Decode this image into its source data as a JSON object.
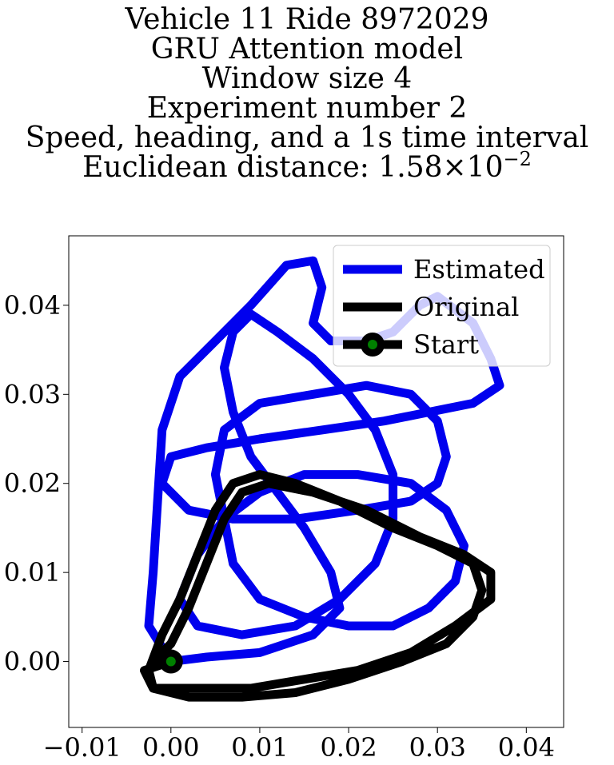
{
  "chart_data": {
    "type": "line",
    "title_lines": [
      "Vehicle 11 Ride 8972029",
      "GRU Attention model",
      "Window size 4",
      "Experiment number 2",
      "Speed, heading, and a 1s time interval"
    ],
    "title_metric": {
      "prefix": "Euclidean distance: ",
      "mantissa": "1.58",
      "times": "×",
      "base": "10",
      "exponent": "−2"
    },
    "xlim": [
      -0.0115,
      0.0442
    ],
    "ylim": [
      -0.0074,
      0.0478
    ],
    "x_ticks": [
      -0.01,
      0.0,
      0.01,
      0.02,
      0.03,
      0.04
    ],
    "x_tick_labels": [
      "−0.01",
      "0.00",
      "0.01",
      "0.02",
      "0.03",
      "0.04"
    ],
    "y_ticks": [
      0.0,
      0.01,
      0.02,
      0.03,
      0.04
    ],
    "y_tick_labels": [
      "0.00",
      "0.01",
      "0.02",
      "0.03",
      "0.04"
    ],
    "grid": false,
    "legend": {
      "placement": "top-right",
      "entries": [
        "Estimated",
        "Original",
        "Start"
      ]
    },
    "series": [
      {
        "name": "Estimated",
        "color": "#0000ee",
        "points": [
          [
            0.0,
            0.0
          ],
          [
            -0.0025,
            0.004
          ],
          [
            -0.002,
            0.01
          ],
          [
            -0.0015,
            0.018
          ],
          [
            -0.001,
            0.026
          ],
          [
            0.001,
            0.032
          ],
          [
            0.005,
            0.036
          ],
          [
            0.009,
            0.04
          ],
          [
            0.013,
            0.0445
          ],
          [
            0.016,
            0.045
          ],
          [
            0.017,
            0.042
          ],
          [
            0.016,
            0.038
          ],
          [
            0.018,
            0.036
          ],
          [
            0.022,
            0.036
          ],
          [
            0.025,
            0.037
          ],
          [
            0.028,
            0.04
          ],
          [
            0.03,
            0.041
          ],
          [
            0.034,
            0.038
          ],
          [
            0.036,
            0.034
          ],
          [
            0.037,
            0.031
          ],
          [
            0.034,
            0.029
          ],
          [
            0.029,
            0.028
          ],
          [
            0.024,
            0.027
          ],
          [
            0.017,
            0.026
          ],
          [
            0.01,
            0.025
          ],
          [
            0.004,
            0.024
          ],
          [
            0.0,
            0.023
          ],
          [
            -0.001,
            0.02
          ],
          [
            0.002,
            0.017
          ],
          [
            0.007,
            0.016
          ],
          [
            0.014,
            0.016
          ],
          [
            0.021,
            0.017
          ],
          [
            0.027,
            0.018
          ],
          [
            0.03,
            0.02
          ],
          [
            0.031,
            0.023
          ],
          [
            0.03,
            0.027
          ],
          [
            0.027,
            0.03
          ],
          [
            0.022,
            0.031
          ],
          [
            0.016,
            0.03
          ],
          [
            0.01,
            0.029
          ],
          [
            0.006,
            0.026
          ],
          [
            0.005,
            0.021
          ],
          [
            0.006,
            0.016
          ],
          [
            0.007,
            0.011
          ],
          [
            0.01,
            0.007
          ],
          [
            0.015,
            0.005
          ],
          [
            0.02,
            0.004
          ],
          [
            0.025,
            0.004
          ],
          [
            0.029,
            0.006
          ],
          [
            0.032,
            0.009
          ],
          [
            0.033,
            0.013
          ],
          [
            0.031,
            0.017
          ],
          [
            0.027,
            0.02
          ],
          [
            0.021,
            0.021
          ],
          [
            0.015,
            0.021
          ],
          [
            0.01,
            0.019
          ],
          [
            0.006,
            0.016
          ],
          [
            0.003,
            0.012
          ],
          [
            0.001,
            0.007
          ],
          [
            0.003,
            0.004
          ],
          [
            0.008,
            0.003
          ],
          [
            0.014,
            0.004
          ],
          [
            0.019,
            0.007
          ],
          [
            0.023,
            0.011
          ],
          [
            0.025,
            0.016
          ],
          [
            0.025,
            0.021
          ],
          [
            0.023,
            0.026
          ],
          [
            0.02,
            0.03
          ],
          [
            0.016,
            0.034
          ],
          [
            0.012,
            0.037
          ],
          [
            0.009,
            0.039
          ],
          [
            0.007,
            0.037
          ],
          [
            0.006,
            0.033
          ],
          [
            0.007,
            0.028
          ],
          [
            0.009,
            0.023
          ],
          [
            0.012,
            0.019
          ],
          [
            0.015,
            0.015
          ],
          [
            0.018,
            0.01
          ],
          [
            0.019,
            0.006
          ],
          [
            0.016,
            0.003
          ],
          [
            0.01,
            0.001
          ],
          [
            0.004,
            0.0005
          ],
          [
            0.0,
            0.0
          ]
        ]
      },
      {
        "name": "Original",
        "color": "#000000",
        "points": [
          [
            0.0,
            0.0
          ],
          [
            -0.003,
            -0.001
          ],
          [
            -0.002,
            -0.003
          ],
          [
            0.002,
            -0.004
          ],
          [
            0.008,
            -0.004
          ],
          [
            0.014,
            -0.0035
          ],
          [
            0.02,
            -0.002
          ],
          [
            0.026,
            0.0
          ],
          [
            0.031,
            0.002
          ],
          [
            0.034,
            0.005
          ],
          [
            0.035,
            0.008
          ],
          [
            0.034,
            0.011
          ],
          [
            0.03,
            0.013
          ],
          [
            0.025,
            0.015
          ],
          [
            0.019,
            0.018
          ],
          [
            0.014,
            0.02
          ],
          [
            0.01,
            0.021
          ],
          [
            0.007,
            0.02
          ],
          [
            0.005,
            0.017
          ],
          [
            0.003,
            0.012
          ],
          [
            0.001,
            0.007
          ],
          [
            -0.001,
            0.003
          ],
          [
            -0.0025,
            -0.001
          ],
          [
            -0.002,
            -0.003
          ],
          [
            0.003,
            -0.003
          ],
          [
            0.009,
            -0.003
          ],
          [
            0.015,
            -0.002
          ],
          [
            0.021,
            -0.001
          ],
          [
            0.027,
            0.001
          ],
          [
            0.032,
            0.004
          ],
          [
            0.036,
            0.007
          ],
          [
            0.036,
            0.01
          ],
          [
            0.033,
            0.012
          ],
          [
            0.028,
            0.014
          ],
          [
            0.022,
            0.017
          ],
          [
            0.016,
            0.019
          ],
          [
            0.011,
            0.02
          ],
          [
            0.008,
            0.019
          ],
          [
            0.006,
            0.016
          ],
          [
            0.004,
            0.011
          ],
          [
            0.002,
            0.006
          ],
          [
            0.0,
            0.002
          ],
          [
            -0.002,
            0.0
          ],
          [
            0.0,
            0.0
          ]
        ]
      }
    ],
    "start_point": [
      0.0,
      0.0
    ],
    "start_color": "#008000"
  }
}
